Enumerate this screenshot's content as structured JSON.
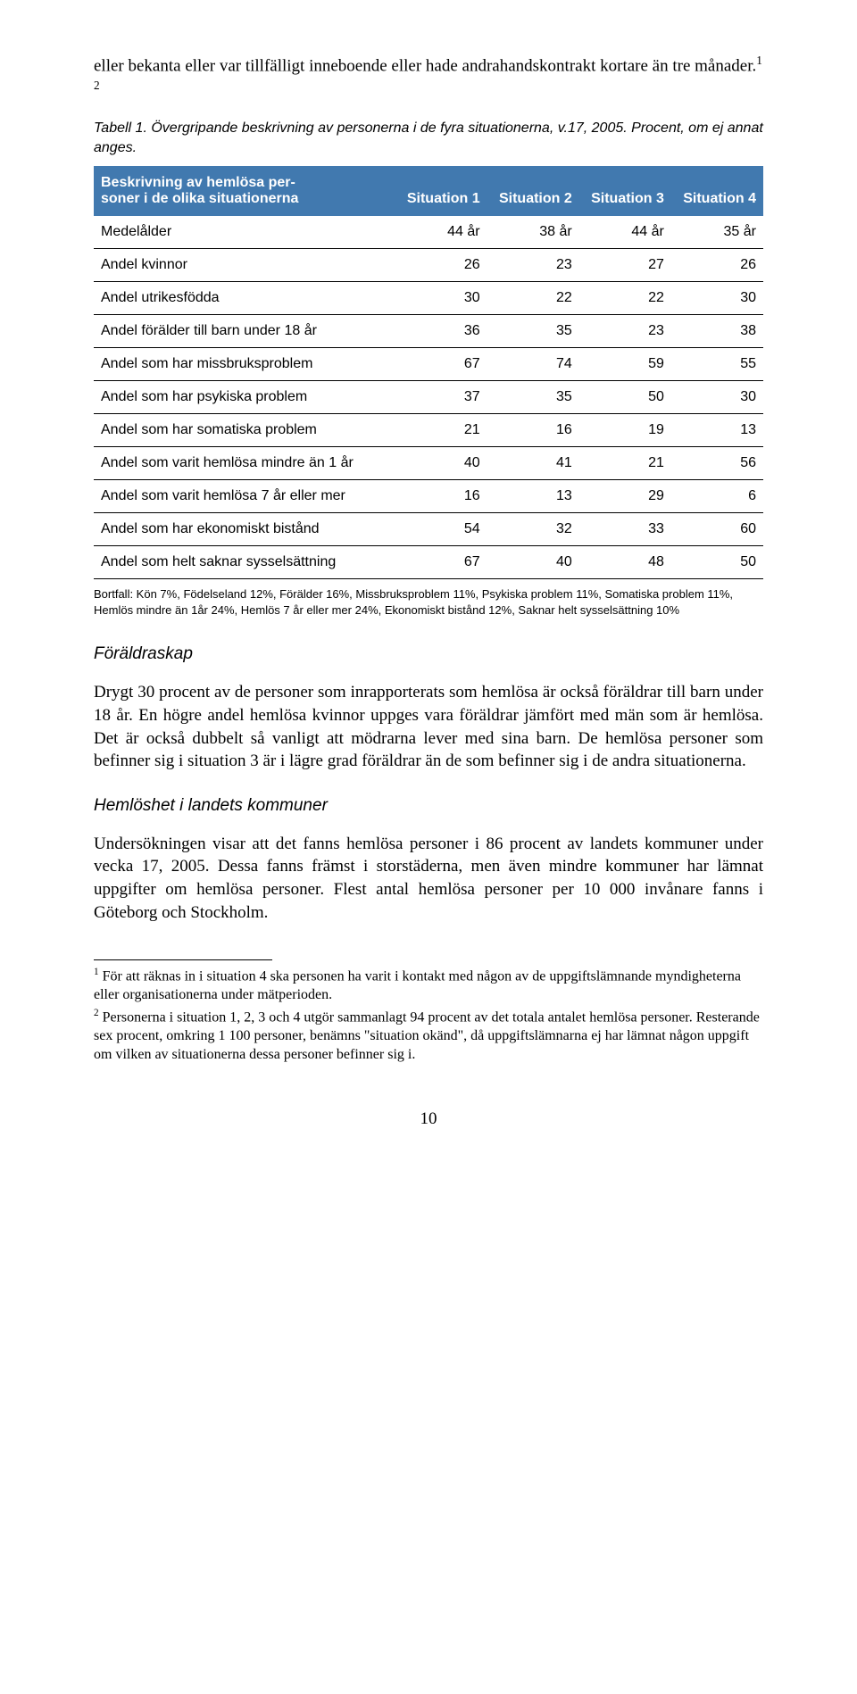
{
  "intro": "eller bekanta eller var tillfälligt inneboende eller hade andrahandskontrakt kortare än tre månader.",
  "intro_sup": "1 2",
  "tableCaption": "Tabell 1. Övergripande beskrivning av personerna i de fyra situationerna, v.17, 2005. Procent, om ej annat anges.",
  "table": {
    "header_desc_line1": "Beskrivning av hemlösa per-",
    "header_desc_line2": "soner i de olika situationerna",
    "cols": [
      "Situation 1",
      "Situation 2",
      "Situation 3",
      "Situation 4"
    ],
    "rows": [
      {
        "label": "Medelålder",
        "vals": [
          "44 år",
          "38 år",
          "44 år",
          "35 år"
        ]
      },
      {
        "label": "Andel kvinnor",
        "vals": [
          "26",
          "23",
          "27",
          "26"
        ]
      },
      {
        "label": "Andel utrikesfödda",
        "vals": [
          "30",
          "22",
          "22",
          "30"
        ]
      },
      {
        "label": "Andel förälder till barn under 18 år",
        "vals": [
          "36",
          "35",
          "23",
          "38"
        ]
      },
      {
        "label": "Andel som har missbruksproblem",
        "vals": [
          "67",
          "74",
          "59",
          "55"
        ]
      },
      {
        "label": "Andel som har psykiska problem",
        "vals": [
          "37",
          "35",
          "50",
          "30"
        ]
      },
      {
        "label": "Andel som har somatiska problem",
        "vals": [
          "21",
          "16",
          "19",
          "13"
        ]
      },
      {
        "label": "Andel som varit hemlösa mindre än 1 år",
        "vals": [
          "40",
          "41",
          "21",
          "56"
        ]
      },
      {
        "label": "Andel som varit hemlösa 7 år eller mer",
        "vals": [
          "16",
          "13",
          "29",
          "6"
        ]
      },
      {
        "label": "Andel som har ekonomiskt bistånd",
        "vals": [
          "54",
          "32",
          "33",
          "60"
        ]
      },
      {
        "label": "Andel som helt saknar sysselsättning",
        "vals": [
          "67",
          "40",
          "48",
          "50"
        ]
      }
    ]
  },
  "tableFootnote": "Bortfall: Kön 7%, Födelseland 12%, Förälder 16%, Missbruksproblem 11%, Psykiska problem 11%, Somatiska problem 11%, Hemlös mindre än 1år 24%, Hemlös 7 år eller mer 24%, Ekonomiskt bistånd 12%, Saknar helt sysselsättning 10%",
  "sections": {
    "s1": {
      "heading": "Föräldraskap",
      "body": "Drygt 30 procent av de personer som inrapporterats som hemlösa är också föräldrar till barn under 18 år. En högre andel hemlösa kvinnor uppges vara föräldrar jämfört med män som är hemlösa. Det är också dubbelt så vanligt att mödrarna lever med sina barn. De hemlösa personer som befinner sig i situation 3 är i lägre grad föräldrar än de som befinner sig i de andra situationerna."
    },
    "s2": {
      "heading": "Hemlöshet i landets kommuner",
      "body": "Undersökningen visar att det fanns hemlösa personer i 86 procent av landets kommuner under vecka 17, 2005. Dessa fanns främst i storstäderna, men även mindre kommuner har lämnat uppgifter om hemlösa personer. Flest antal hemlösa personer per 10 000 invånare fanns i Göteborg och Stockholm."
    }
  },
  "footnotes": {
    "f1_num": "1",
    "f1": " För att räknas in i situation 4 ska personen ha varit i kontakt med någon av de uppgiftslämnande myndigheterna eller organisationerna under mätperioden.",
    "f2_num": "2",
    "f2": " Personerna i situation 1, 2, 3 och 4 utgör sammanlagt 94 procent av det totala antalet hemlösa personer. Resterande sex procent, omkring 1 100 personer, benämns \"situation okänd\", då uppgiftslämnarna ej har lämnat någon uppgift om vilken av situationerna dessa personer befinner sig i."
  },
  "pageNumber": "10"
}
